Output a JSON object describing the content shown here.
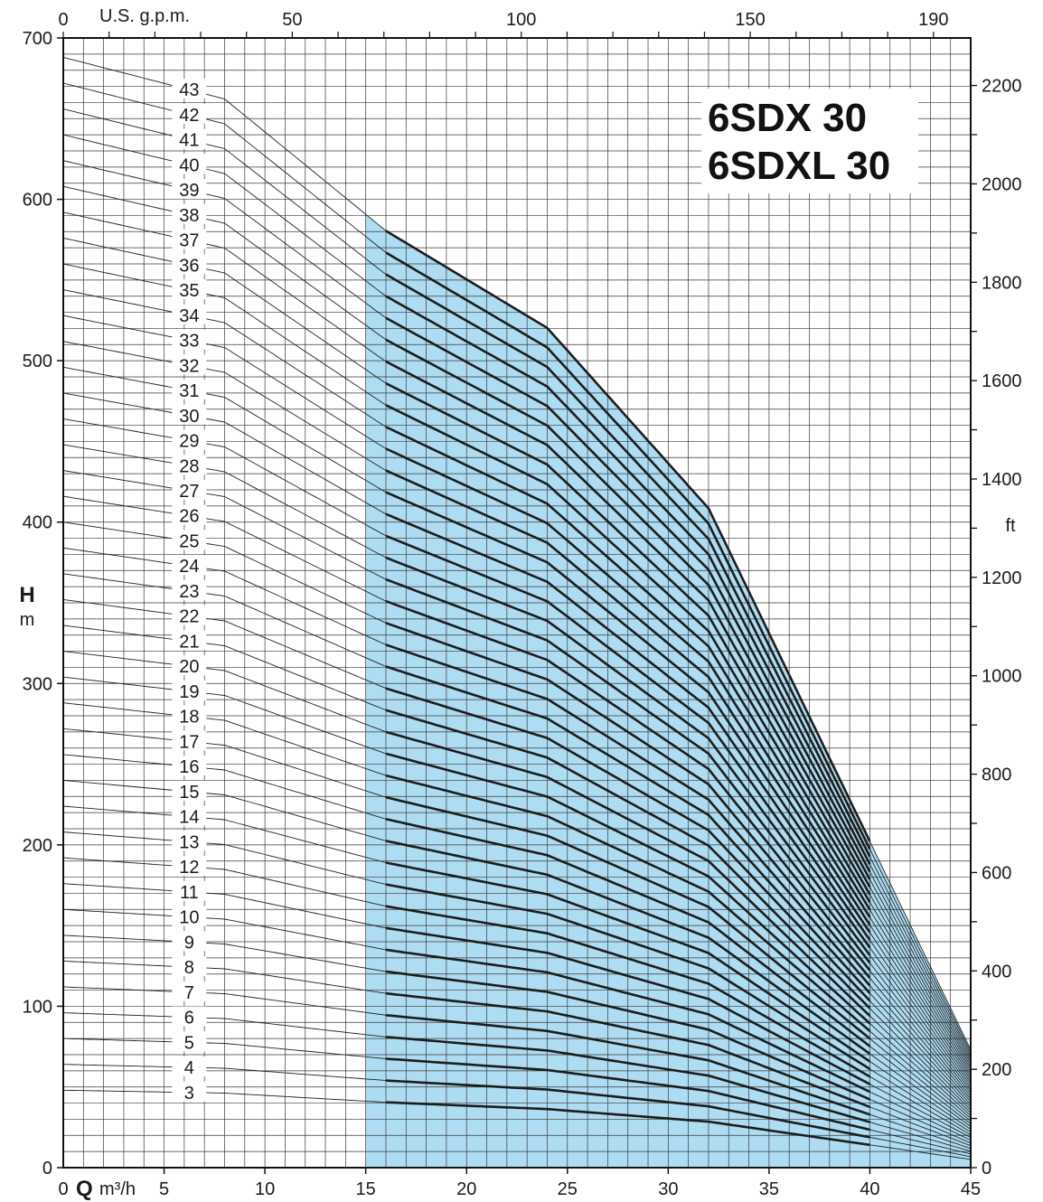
{
  "chart_data": {
    "type": "line",
    "title": [
      "6SDX 30",
      "6SDXL 30"
    ],
    "x_bottom": {
      "label_prefix": "0",
      "label_bold": "Q",
      "label_unit": "m³/h",
      "min": 0,
      "max": 45,
      "ticks": [
        "5",
        "10",
        "15",
        "20",
        "25",
        "30",
        "35",
        "40",
        "45"
      ]
    },
    "x_top": {
      "label": "U.S. g.p.m.",
      "ticks": [
        "0",
        "50",
        "100",
        "150",
        "190"
      ]
    },
    "y_left": {
      "label": "H",
      "unit": "m",
      "min": 0,
      "max": 700,
      "ticks": [
        "0",
        "100",
        "200",
        "300",
        "400",
        "500",
        "600",
        "700"
      ]
    },
    "y_right": {
      "label": "ft",
      "ticks": [
        "0",
        "200",
        "400",
        "600",
        "800",
        "1000",
        "1200",
        "1400",
        "1600",
        "1800",
        "2000",
        "2200"
      ]
    },
    "operating_range": {
      "q_min": 15,
      "q_max": 40,
      "color": "#aedcf2"
    },
    "grid": true,
    "curve_model": {
      "head_per_stage_m": [
        16.0,
        15.4,
        13.5,
        12.1,
        9.5,
        4.7
      ]
    },
    "stages": [
      "3",
      "4",
      "5",
      "6",
      "7",
      "8",
      "9",
      "10",
      "11",
      "12",
      "13",
      "14",
      "15",
      "16",
      "17",
      "18",
      "19",
      "20",
      "21",
      "22",
      "23",
      "24",
      "25",
      "26",
      "27",
      "28",
      "29",
      "30",
      "31",
      "32",
      "33",
      "34",
      "35",
      "36",
      "37",
      "38",
      "39",
      "40",
      "41",
      "42",
      "43"
    ]
  }
}
